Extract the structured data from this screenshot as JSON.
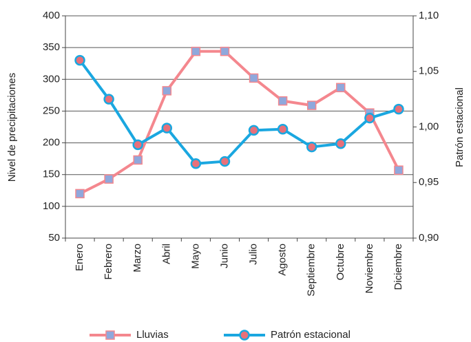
{
  "chart_data": {
    "type": "line",
    "categories": [
      "Enero",
      "Febrero",
      "Marzo",
      "Abril",
      "Mayo",
      "Junio",
      "Julio",
      "Agosto",
      "Septiembre",
      "Octubre",
      "Noviembre",
      "Diciembre"
    ],
    "series": [
      {
        "name": "Lluvias",
        "color": "#f4878e",
        "marker": "square",
        "marker_color": "#8fa8dc",
        "values": [
          120,
          143,
          173,
          282,
          344,
          344,
          302,
          266,
          259,
          287,
          247,
          157
        ]
      },
      {
        "name": "Patrón estacional",
        "color": "#1aa7e0",
        "marker": "circle",
        "marker_color": "#e8707a",
        "axis": "y2",
        "values": [
          1.06,
          1.025,
          0.984,
          0.999,
          0.967,
          0.969,
          0.997,
          0.998,
          0.982,
          0.985,
          1.008,
          1.016
        ]
      }
    ],
    "ylabel": "Nivel de precipitaciones",
    "y2label": "Patrón estacional",
    "ylim": [
      50,
      400
    ],
    "yticks": [
      50,
      100,
      150,
      200,
      250,
      300,
      350,
      400
    ],
    "y2lim": [
      0.9,
      1.1
    ],
    "y2ticks": [
      {
        "value": 0.9,
        "label": "0,90"
      },
      {
        "value": 0.95,
        "label": "0,95"
      },
      {
        "value": 1.0,
        "label": "1,00"
      },
      {
        "value": 1.05,
        "label": "1,05"
      },
      {
        "value": 1.1,
        "label": "1,10"
      }
    ],
    "grid": true,
    "legend": "bottom"
  }
}
